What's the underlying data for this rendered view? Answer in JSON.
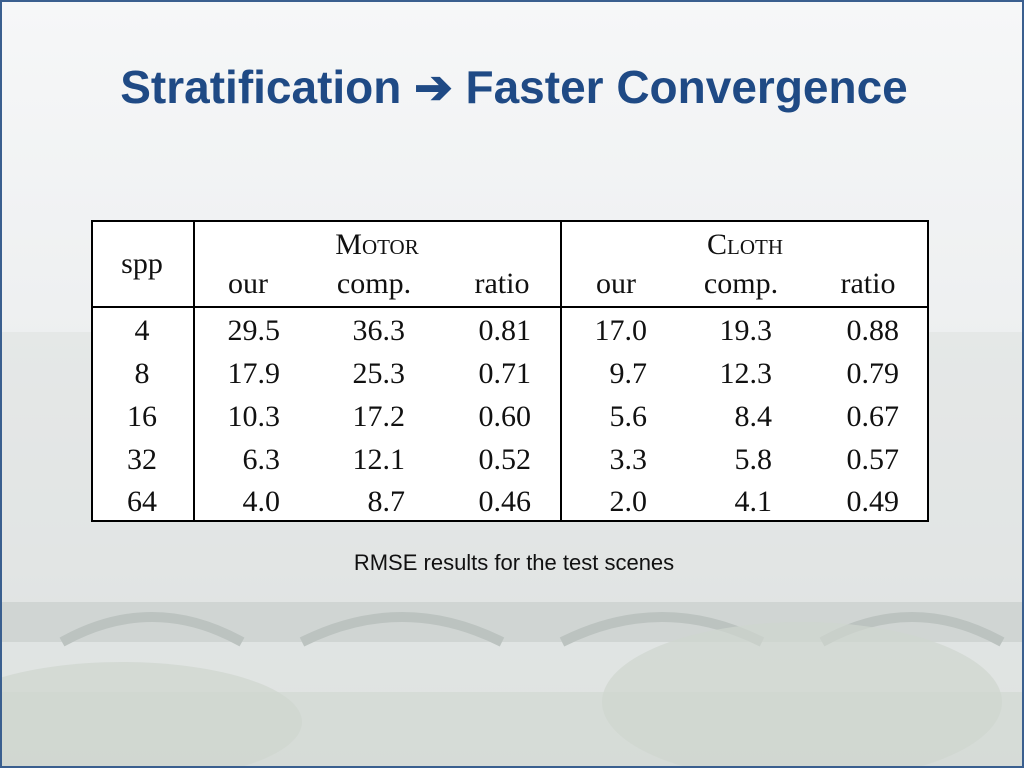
{
  "header": {
    "title": "Stratification ➔ Faster Convergence"
  },
  "table": {
    "corner": "spp",
    "groups": [
      "Motor",
      "Cloth"
    ],
    "columns": [
      "our",
      "comp.",
      "ratio",
      "our",
      "comp.",
      "ratio"
    ],
    "rows": [
      [
        "4",
        "29.5",
        "36.3",
        "0.81",
        "17.0",
        "19.3",
        "0.88"
      ],
      [
        "8",
        "17.9",
        "25.3",
        "0.71",
        "9.7",
        "12.3",
        "0.79"
      ],
      [
        "16",
        "10.3",
        "17.2",
        "0.60",
        "5.6",
        "8.4",
        "0.67"
      ],
      [
        "32",
        "6.3",
        "12.1",
        "0.52",
        "3.3",
        "5.8",
        "0.57"
      ],
      [
        "64",
        "4.0",
        "8.7",
        "0.46",
        "2.0",
        "4.1",
        "0.49"
      ]
    ]
  },
  "caption": "RMSE results for the test scenes"
}
